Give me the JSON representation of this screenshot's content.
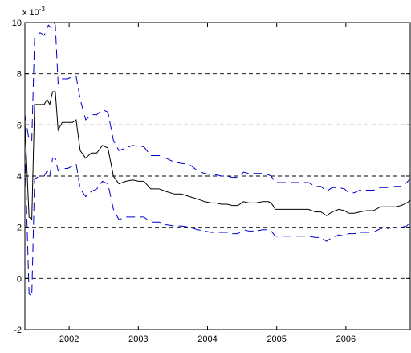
{
  "chart_data": {
    "type": "line",
    "title": "",
    "xlabel": "",
    "ylabel": "",
    "y_exponent_label": "x 10",
    "y_exponent_power": "-3",
    "xlim": [
      2001.36,
      2006.93
    ],
    "ylim": [
      -2,
      10
    ],
    "x_ticks": [
      2002,
      2003,
      2004,
      2005,
      2006
    ],
    "x_tick_labels": [
      "2002",
      "2003",
      "2004",
      "2005",
      "2006"
    ],
    "y_ticks": [
      -2,
      0,
      2,
      4,
      6,
      8,
      10
    ],
    "y_tick_labels": [
      "-2",
      "0",
      "2",
      "4",
      "6",
      "8",
      "10"
    ],
    "horizontal_dashed_grid": [
      0,
      2,
      4,
      6,
      8
    ],
    "colors": {
      "estimate": "#000000",
      "band": "#0000cc",
      "grid": "#000000",
      "axis": "#000000"
    },
    "series": [
      {
        "role": "estimate",
        "style": "solid",
        "points": [
          [
            2001.36,
            6.1
          ],
          [
            2001.42,
            2.4
          ],
          [
            2001.46,
            2.3
          ],
          [
            2001.5,
            6.8
          ],
          [
            2001.58,
            6.8
          ],
          [
            2001.64,
            6.8
          ],
          [
            2001.68,
            7.0
          ],
          [
            2001.72,
            6.8
          ],
          [
            2001.76,
            7.3
          ],
          [
            2001.8,
            7.3
          ],
          [
            2001.84,
            5.8
          ],
          [
            2001.9,
            6.1
          ],
          [
            2001.98,
            6.1
          ],
          [
            2002.05,
            6.1
          ],
          [
            2002.1,
            6.2
          ],
          [
            2002.16,
            5.0
          ],
          [
            2002.24,
            4.7
          ],
          [
            2002.32,
            4.9
          ],
          [
            2002.4,
            4.9
          ],
          [
            2002.48,
            5.2
          ],
          [
            2002.56,
            5.1
          ],
          [
            2002.64,
            4.0
          ],
          [
            2002.72,
            3.7
          ],
          [
            2002.82,
            3.8
          ],
          [
            2002.92,
            3.85
          ],
          [
            2003.0,
            3.8
          ],
          [
            2003.08,
            3.8
          ],
          [
            2003.18,
            3.5
          ],
          [
            2003.3,
            3.5
          ],
          [
            2003.4,
            3.4
          ],
          [
            2003.52,
            3.3
          ],
          [
            2003.62,
            3.3
          ],
          [
            2003.74,
            3.2
          ],
          [
            2003.86,
            3.1
          ],
          [
            2003.96,
            3.0
          ],
          [
            2004.05,
            2.95
          ],
          [
            2004.12,
            2.95
          ],
          [
            2004.2,
            2.9
          ],
          [
            2004.28,
            2.9
          ],
          [
            2004.36,
            2.85
          ],
          [
            2004.44,
            2.85
          ],
          [
            2004.52,
            3.0
          ],
          [
            2004.6,
            2.95
          ],
          [
            2004.7,
            2.95
          ],
          [
            2004.8,
            3.0
          ],
          [
            2004.88,
            3.0
          ],
          [
            2004.92,
            2.95
          ],
          [
            2004.98,
            2.7
          ],
          [
            2005.1,
            2.7
          ],
          [
            2005.22,
            2.7
          ],
          [
            2005.34,
            2.7
          ],
          [
            2005.46,
            2.7
          ],
          [
            2005.56,
            2.6
          ],
          [
            2005.64,
            2.6
          ],
          [
            2005.72,
            2.45
          ],
          [
            2005.8,
            2.6
          ],
          [
            2005.9,
            2.7
          ],
          [
            2005.98,
            2.65
          ],
          [
            2006.04,
            2.55
          ],
          [
            2006.12,
            2.55
          ],
          [
            2006.2,
            2.6
          ],
          [
            2006.3,
            2.65
          ],
          [
            2006.4,
            2.65
          ],
          [
            2006.5,
            2.8
          ],
          [
            2006.6,
            2.8
          ],
          [
            2006.72,
            2.8
          ],
          [
            2006.8,
            2.85
          ],
          [
            2006.88,
            2.95
          ],
          [
            2006.93,
            3.05
          ]
        ]
      },
      {
        "role": "upper-band",
        "style": "dashed",
        "points": [
          [
            2001.36,
            6.4
          ],
          [
            2001.42,
            5.4
          ],
          [
            2001.46,
            5.4
          ],
          [
            2001.5,
            9.4
          ],
          [
            2001.58,
            9.6
          ],
          [
            2001.64,
            9.5
          ],
          [
            2001.7,
            9.9
          ],
          [
            2001.74,
            9.8
          ],
          [
            2001.78,
            10.0
          ],
          [
            2001.8,
            9.9
          ],
          [
            2001.84,
            7.6
          ],
          [
            2001.9,
            7.8
          ],
          [
            2001.98,
            7.8
          ],
          [
            2002.05,
            7.9
          ],
          [
            2002.1,
            7.9
          ],
          [
            2002.16,
            7.0
          ],
          [
            2002.24,
            6.2
          ],
          [
            2002.32,
            6.4
          ],
          [
            2002.4,
            6.4
          ],
          [
            2002.48,
            6.6
          ],
          [
            2002.56,
            6.5
          ],
          [
            2002.64,
            5.4
          ],
          [
            2002.72,
            5.0
          ],
          [
            2002.82,
            5.1
          ],
          [
            2002.92,
            5.2
          ],
          [
            2003.0,
            5.15
          ],
          [
            2003.08,
            5.15
          ],
          [
            2003.18,
            4.8
          ],
          [
            2003.3,
            4.8
          ],
          [
            2003.4,
            4.7
          ],
          [
            2003.52,
            4.55
          ],
          [
            2003.62,
            4.5
          ],
          [
            2003.74,
            4.45
          ],
          [
            2003.86,
            4.2
          ],
          [
            2003.96,
            4.1
          ],
          [
            2004.05,
            4.05
          ],
          [
            2004.12,
            4.05
          ],
          [
            2004.2,
            4.0
          ],
          [
            2004.28,
            4.0
          ],
          [
            2004.36,
            3.95
          ],
          [
            2004.44,
            3.95
          ],
          [
            2004.52,
            4.15
          ],
          [
            2004.6,
            4.1
          ],
          [
            2004.7,
            4.1
          ],
          [
            2004.8,
            4.1
          ],
          [
            2004.88,
            4.05
          ],
          [
            2004.92,
            4.0
          ],
          [
            2004.98,
            3.75
          ],
          [
            2005.1,
            3.75
          ],
          [
            2005.22,
            3.75
          ],
          [
            2005.34,
            3.75
          ],
          [
            2005.46,
            3.75
          ],
          [
            2005.56,
            3.6
          ],
          [
            2005.64,
            3.6
          ],
          [
            2005.72,
            3.4
          ],
          [
            2005.8,
            3.55
          ],
          [
            2005.9,
            3.55
          ],
          [
            2005.98,
            3.5
          ],
          [
            2006.04,
            3.35
          ],
          [
            2006.12,
            3.35
          ],
          [
            2006.2,
            3.45
          ],
          [
            2006.3,
            3.45
          ],
          [
            2006.4,
            3.45
          ],
          [
            2006.5,
            3.55
          ],
          [
            2006.6,
            3.55
          ],
          [
            2006.72,
            3.6
          ],
          [
            2006.8,
            3.6
          ],
          [
            2006.88,
            3.75
          ],
          [
            2006.93,
            3.9
          ]
        ]
      },
      {
        "role": "lower-band",
        "style": "dashed",
        "points": [
          [
            2001.36,
            5.0
          ],
          [
            2001.42,
            -0.6
          ],
          [
            2001.46,
            -0.7
          ],
          [
            2001.5,
            3.9
          ],
          [
            2001.58,
            4.0
          ],
          [
            2001.64,
            4.0
          ],
          [
            2001.68,
            4.2
          ],
          [
            2001.72,
            4.0
          ],
          [
            2001.76,
            4.7
          ],
          [
            2001.8,
            4.7
          ],
          [
            2001.84,
            4.2
          ],
          [
            2001.9,
            4.3
          ],
          [
            2001.98,
            4.3
          ],
          [
            2002.05,
            4.4
          ],
          [
            2002.1,
            4.5
          ],
          [
            2002.16,
            3.5
          ],
          [
            2002.24,
            3.2
          ],
          [
            2002.32,
            3.4
          ],
          [
            2002.4,
            3.5
          ],
          [
            2002.48,
            3.8
          ],
          [
            2002.56,
            3.7
          ],
          [
            2002.64,
            2.7
          ],
          [
            2002.72,
            2.3
          ],
          [
            2002.82,
            2.4
          ],
          [
            2002.92,
            2.4
          ],
          [
            2003.0,
            2.4
          ],
          [
            2003.08,
            2.4
          ],
          [
            2003.18,
            2.2
          ],
          [
            2003.3,
            2.2
          ],
          [
            2003.4,
            2.1
          ],
          [
            2003.52,
            2.05
          ],
          [
            2003.62,
            2.05
          ],
          [
            2003.74,
            2.0
          ],
          [
            2003.86,
            1.9
          ],
          [
            2003.96,
            1.85
          ],
          [
            2004.05,
            1.8
          ],
          [
            2004.12,
            1.8
          ],
          [
            2004.2,
            1.8
          ],
          [
            2004.28,
            1.8
          ],
          [
            2004.36,
            1.75
          ],
          [
            2004.44,
            1.75
          ],
          [
            2004.52,
            1.9
          ],
          [
            2004.6,
            1.85
          ],
          [
            2004.7,
            1.85
          ],
          [
            2004.8,
            1.9
          ],
          [
            2004.88,
            1.9
          ],
          [
            2004.92,
            1.85
          ],
          [
            2004.98,
            1.65
          ],
          [
            2005.1,
            1.65
          ],
          [
            2005.22,
            1.65
          ],
          [
            2005.34,
            1.65
          ],
          [
            2005.46,
            1.65
          ],
          [
            2005.56,
            1.6
          ],
          [
            2005.64,
            1.6
          ],
          [
            2005.72,
            1.45
          ],
          [
            2005.8,
            1.6
          ],
          [
            2005.9,
            1.7
          ],
          [
            2005.98,
            1.65
          ],
          [
            2006.04,
            1.75
          ],
          [
            2006.12,
            1.75
          ],
          [
            2006.2,
            1.8
          ],
          [
            2006.3,
            1.8
          ],
          [
            2006.4,
            1.8
          ],
          [
            2006.5,
            1.95
          ],
          [
            2006.6,
            1.95
          ],
          [
            2006.72,
            2.0
          ],
          [
            2006.8,
            2.0
          ],
          [
            2006.88,
            2.05
          ],
          [
            2006.93,
            2.2
          ]
        ]
      }
    ]
  }
}
